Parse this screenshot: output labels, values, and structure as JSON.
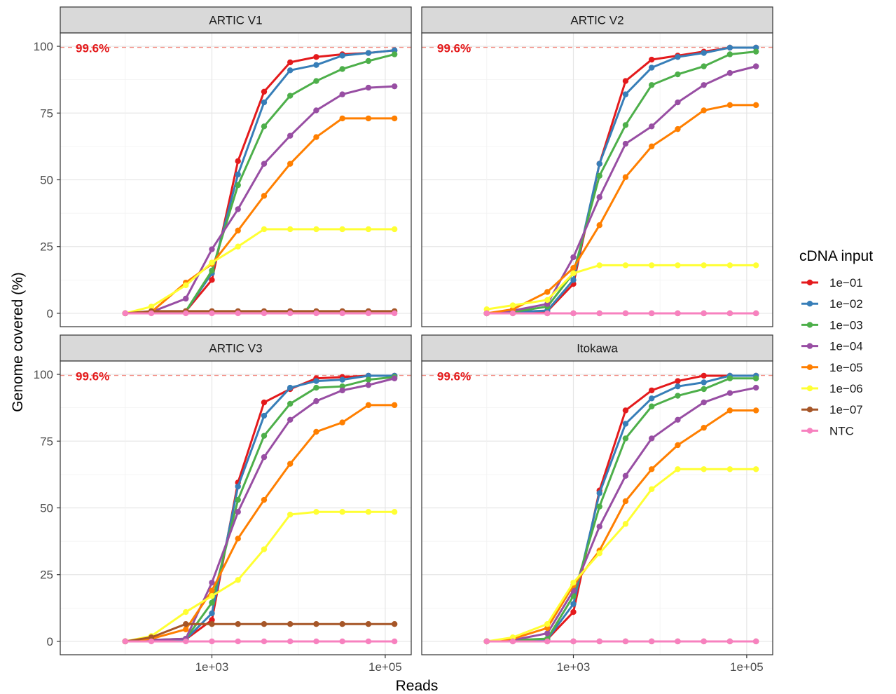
{
  "chart_data": {
    "type": "line",
    "xlabel": "Reads",
    "ylabel": "Genome covered (%)",
    "x_scale": "log10",
    "x_ticks": [
      {
        "value": 1000,
        "label": "1e+03"
      },
      {
        "value": 100000,
        "label": "1e+05"
      }
    ],
    "y_ticks": [
      0,
      25,
      50,
      75,
      100
    ],
    "ylim": [
      -5,
      105
    ],
    "xlim_log10": [
      1.25,
      5.3
    ],
    "grid": true,
    "reference_line": {
      "y": 99.6,
      "label": "99.6%",
      "style": "dashed",
      "color": "#f28b82"
    },
    "x": [
      100,
      200,
      500,
      1000,
      2000,
      4000,
      8000,
      16000,
      32000,
      64000,
      128000
    ],
    "legend": {
      "title": "cDNA input",
      "placement": "right"
    },
    "series_colors": {
      "1e-01": "#e41a1c",
      "1e-02": "#377eb8",
      "1e-03": "#4daf4a",
      "1e-04": "#984ea3",
      "1e-05": "#ff7f00",
      "1e-06": "#ffff33",
      "1e-07": "#a65628",
      "NTC": "#f781bf"
    },
    "series_order": [
      "1e-01",
      "1e-02",
      "1e-03",
      "1e-04",
      "1e-05",
      "1e-06",
      "1e-07",
      "NTC"
    ],
    "panels": [
      {
        "title": "ARTIC V1",
        "series": [
          {
            "name": "1e-01",
            "values": [
              0,
              0.5,
              0.8,
              12.5,
              57,
              83,
              94,
              96,
              97,
              97.5,
              98.5
            ]
          },
          {
            "name": "1e-02",
            "values": [
              0,
              0.5,
              0.8,
              15,
              52,
              79,
              91,
              93,
              96.5,
              97.5,
              98.5
            ]
          },
          {
            "name": "1e-03",
            "values": [
              0,
              0.5,
              0.8,
              16,
              48,
              70,
              81.5,
              87,
              91.5,
              94.5,
              97
            ]
          },
          {
            "name": "1e-04",
            "values": [
              0,
              0.5,
              5.5,
              24,
              39,
              56,
              66.5,
              76,
              82,
              84.5,
              85
            ]
          },
          {
            "name": "1e-05",
            "values": [
              0,
              0.5,
              11.5,
              18.5,
              31,
              44,
              56,
              66,
              73,
              73,
              73
            ]
          },
          {
            "name": "1e-06",
            "values": [
              0,
              2.5,
              10.5,
              19,
              25,
              31.5,
              31.5,
              31.5,
              31.5,
              31.5,
              31.5
            ]
          },
          {
            "name": "1e-07",
            "values": [
              0,
              0.8,
              0.8,
              0.8,
              0.8,
              0.8,
              0.8,
              0.8,
              0.8,
              0.8,
              0.8
            ]
          },
          {
            "name": "NTC",
            "values": [
              0,
              0,
              0,
              0,
              0,
              0,
              0,
              0,
              0,
              0,
              0
            ]
          }
        ]
      },
      {
        "title": "ARTIC V2",
        "series": [
          {
            "name": "1e-01",
            "values": [
              0,
              0.5,
              0.8,
              11,
              56,
              87,
              95,
              96.5,
              98,
              99.5,
              99.5
            ]
          },
          {
            "name": "1e-02",
            "values": [
              0,
              0.5,
              1,
              12.5,
              56,
              82,
              92,
              96,
              97.5,
              99.5,
              99.5
            ]
          },
          {
            "name": "1e-03",
            "values": [
              0,
              0.5,
              2.5,
              15,
              51.5,
              70.5,
              85.5,
              89.5,
              92.5,
              97,
              98
            ]
          },
          {
            "name": "1e-04",
            "values": [
              0,
              1,
              3.5,
              21,
              43.5,
              63.5,
              70,
              79,
              85.5,
              90,
              92.5
            ]
          },
          {
            "name": "1e-05",
            "values": [
              0,
              1.5,
              8,
              17,
              33,
              51,
              62.5,
              69,
              76,
              78,
              78
            ]
          },
          {
            "name": "1e-06",
            "values": [
              1.5,
              3,
              5,
              15,
              18,
              18,
              18,
              18,
              18,
              18,
              18
            ]
          },
          {
            "name": "1e-07",
            "values": [
              0,
              0,
              0,
              0,
              0,
              0,
              0,
              0,
              0,
              0,
              0
            ]
          },
          {
            "name": "NTC",
            "values": [
              0,
              0,
              0,
              0,
              0,
              0,
              0,
              0,
              0,
              0,
              0
            ]
          }
        ]
      },
      {
        "title": "ARTIC V3",
        "series": [
          {
            "name": "1e-01",
            "values": [
              0,
              0.5,
              0.8,
              8,
              59.5,
              89.5,
              94.5,
              98.5,
              99,
              99.5,
              99.5
            ]
          },
          {
            "name": "1e-02",
            "values": [
              0,
              0.5,
              0.8,
              10.5,
              58,
              84.5,
              95,
              97.5,
              98,
              99.5,
              99.5
            ]
          },
          {
            "name": "1e-03",
            "values": [
              0,
              0.5,
              1,
              14.5,
              53,
              77,
              89,
              95,
              95.5,
              98,
              99
            ]
          },
          {
            "name": "1e-04",
            "values": [
              0,
              0.5,
              1,
              22,
              48.5,
              69,
              83,
              90,
              94,
              96,
              98.5
            ]
          },
          {
            "name": "1e-05",
            "values": [
              0,
              1,
              4.5,
              19,
              38.5,
              53,
              66.5,
              78.5,
              82,
              88.5,
              88.5
            ]
          },
          {
            "name": "1e-06",
            "values": [
              0,
              2,
              11,
              17,
              23,
              34.5,
              47.5,
              48.5,
              48.5,
              48.5,
              48.5
            ]
          },
          {
            "name": "1e-07",
            "values": [
              0,
              1.5,
              6.5,
              6.5,
              6.5,
              6.5,
              6.5,
              6.5,
              6.5,
              6.5,
              6.5
            ]
          },
          {
            "name": "NTC",
            "values": [
              0,
              0,
              0,
              0,
              0,
              0,
              0,
              0,
              0,
              0,
              0
            ]
          }
        ]
      },
      {
        "title": "Itokawa",
        "series": [
          {
            "name": "1e-01",
            "values": [
              0,
              0.5,
              0.8,
              11,
              56.5,
              86.5,
              94,
              97.5,
              99.5,
              99.5,
              99.5
            ]
          },
          {
            "name": "1e-02",
            "values": [
              0,
              0.5,
              0.8,
              14,
              55.5,
              81.5,
              91,
              95.5,
              97,
              99.5,
              99.5
            ]
          },
          {
            "name": "1e-03",
            "values": [
              0,
              0.5,
              1,
              17,
              50.5,
              76,
              88,
              92,
              94.5,
              98.5,
              98.5
            ]
          },
          {
            "name": "1e-04",
            "values": [
              0,
              0.5,
              3,
              19,
              43,
              62,
              76,
              83,
              89.5,
              93,
              95
            ]
          },
          {
            "name": "1e-05",
            "values": [
              0,
              1,
              5,
              21,
              34,
              52.5,
              64.5,
              73.5,
              80,
              86.5,
              86.5
            ]
          },
          {
            "name": "1e-06",
            "values": [
              0,
              1.5,
              6.5,
              22,
              33,
              44,
              57,
              64.5,
              64.5,
              64.5,
              64.5
            ]
          },
          {
            "name": "1e-07",
            "values": [
              0,
              0,
              0,
              0,
              0,
              0,
              0,
              0,
              0,
              0,
              0
            ]
          },
          {
            "name": "NTC",
            "values": [
              0,
              0,
              0,
              0,
              0,
              0,
              0,
              0,
              0,
              0,
              0
            ]
          }
        ]
      }
    ]
  }
}
